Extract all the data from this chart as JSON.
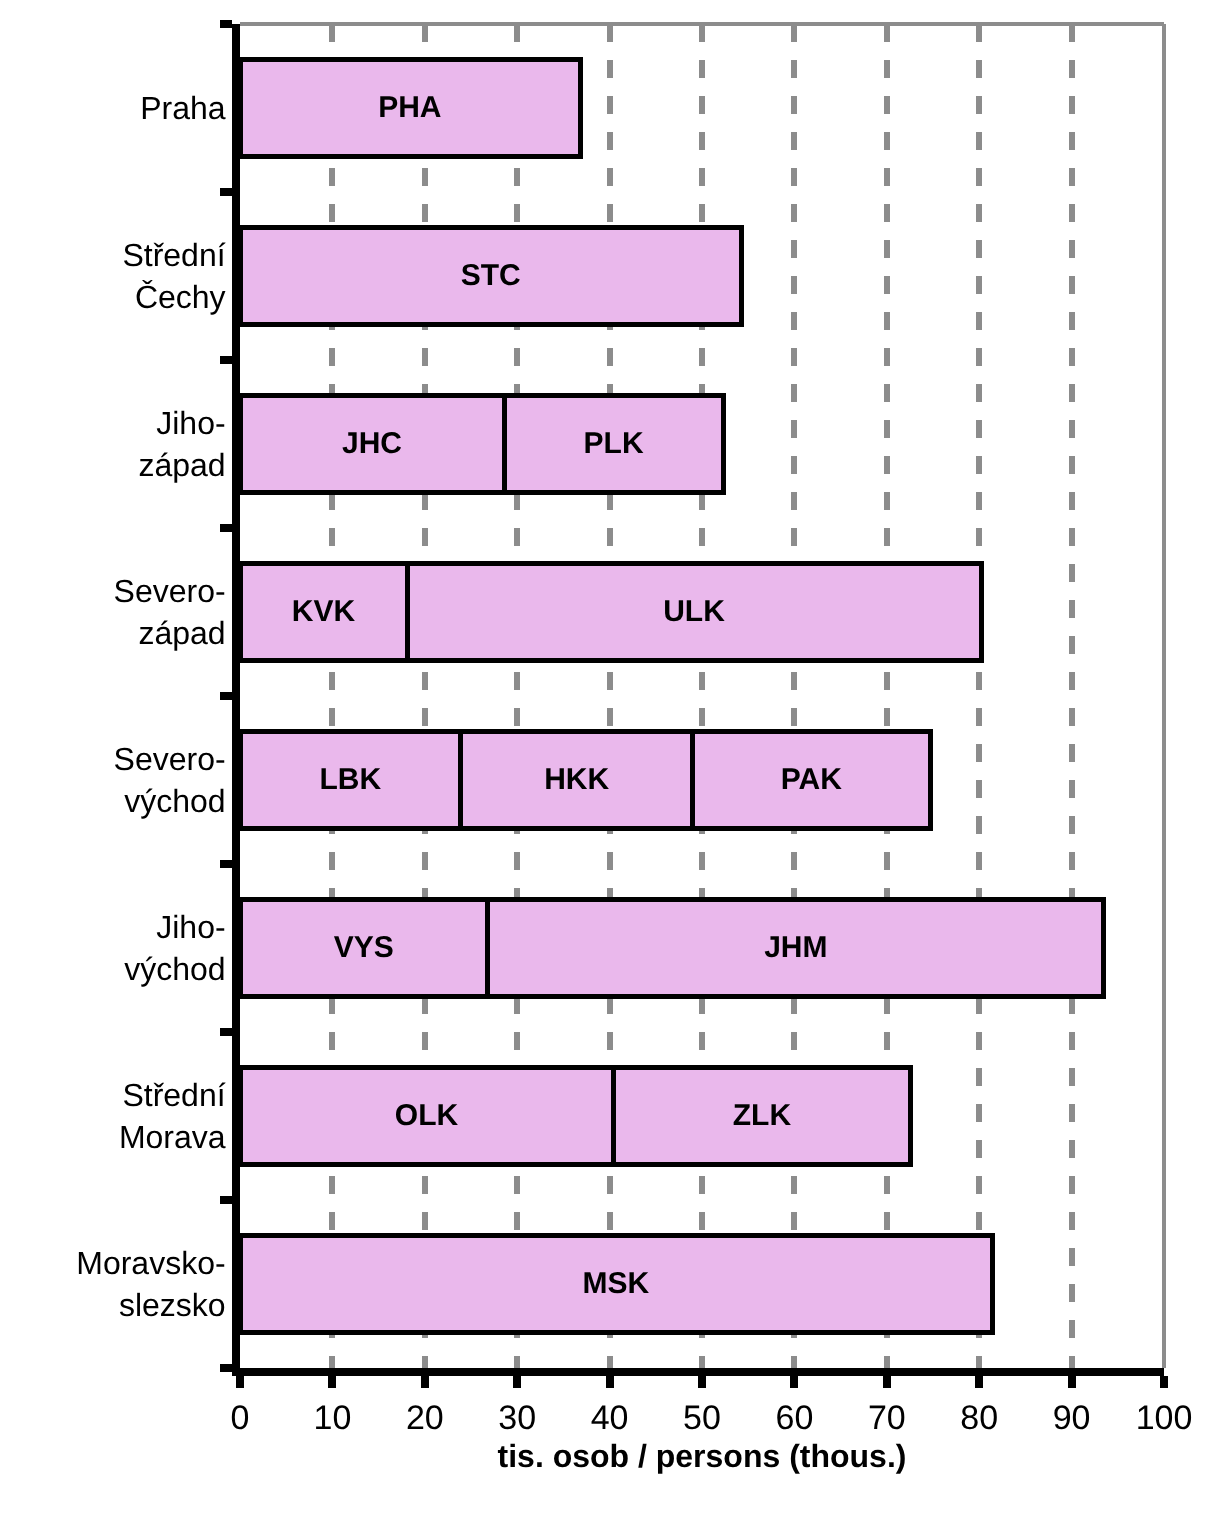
{
  "chart_data": {
    "type": "bar",
    "orientation": "horizontal",
    "stacked": true,
    "xlabel": "tis. osob / persons (thous.)",
    "categories": [
      "Praha",
      "Střední\nČechy",
      "Jiho-\nzápad",
      "Severo-\nzápad",
      "Severo-\nvýchod",
      "Jiho-\nvýchod",
      "Střední\nMorava",
      "Moravsko-\nslezsko"
    ],
    "series": [
      {
        "color": "#eab8ec",
        "values": [
          36.8,
          54.3,
          28.6,
          18.1,
          23.9,
          26.8,
          40.4,
          81.4
        ],
        "value_labels": [
          "PHA",
          "STC",
          "JHC",
          "KVK",
          "LBK",
          "VYS",
          "OLK",
          "MSK"
        ]
      },
      {
        "color": "#eab8ec",
        "values": [
          null,
          null,
          23.7,
          62.1,
          25.1,
          66.7,
          32.2,
          null
        ],
        "value_labels": [
          null,
          null,
          "PLK",
          "ULK",
          "HKK",
          "JHM",
          "ZLK",
          null
        ]
      },
      {
        "color": "#eab8ec",
        "values": [
          null,
          null,
          null,
          null,
          25.7,
          null,
          null,
          null
        ],
        "value_labels": [
          null,
          null,
          null,
          null,
          "PAK",
          null,
          null,
          null
        ]
      }
    ],
    "xlim": [
      0,
      100
    ],
    "xticks": [
      0,
      10,
      20,
      30,
      40,
      50,
      60,
      70,
      80,
      90,
      100
    ],
    "grid": "x"
  }
}
